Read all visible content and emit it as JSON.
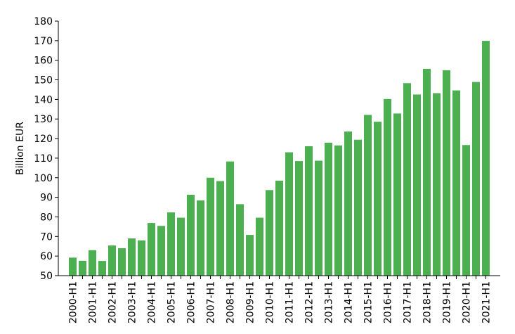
{
  "chart_data": {
    "type": "bar",
    "title": "",
    "xlabel": "",
    "ylabel": "Billion EUR",
    "ylim": [
      50,
      180
    ],
    "yticks": [
      50,
      60,
      70,
      80,
      90,
      100,
      110,
      120,
      130,
      140,
      150,
      160,
      170,
      180
    ],
    "grid": false,
    "legend": "none",
    "bar_color": "#4caf50",
    "categories": [
      "2000-H1",
      "2000-H2",
      "2001-H1",
      "2001-H2",
      "2002-H1",
      "2002-H2",
      "2003-H1",
      "2003-H2",
      "2004-H1",
      "2004-H2",
      "2005-H1",
      "2005-H2",
      "2006-H1",
      "2006-H2",
      "2007-H1",
      "2007-H2",
      "2008-H1",
      "2008-H2",
      "2009-H1",
      "2009-H2",
      "2010-H1",
      "2010-H2",
      "2011-H1",
      "2011-H2",
      "2012-H1",
      "2012-H2",
      "2013-H1",
      "2013-H2",
      "2014-H1",
      "2014-H2",
      "2015-H1",
      "2015-H2",
      "2016-H1",
      "2016-H2",
      "2017-H1",
      "2017-H2",
      "2018-H1",
      "2018-H2",
      "2019-H1",
      "2019-H2",
      "2020-H1",
      "2020-H2",
      "2021-H1"
    ],
    "tick_labels": [
      "2000-H1",
      "",
      "2001-H1",
      "",
      "2002-H1",
      "",
      "2003-H1",
      "",
      "2004-H1",
      "",
      "2005-H1",
      "",
      "2006-H1",
      "",
      "2007-H1",
      "",
      "2008-H1",
      "",
      "2009-H1",
      "",
      "2010-H1",
      "",
      "2011-H1",
      "",
      "2012-H1",
      "",
      "2013-H1",
      "",
      "2014-H1",
      "",
      "2015-H1",
      "",
      "2016-H1",
      "",
      "2017-H1",
      "",
      "2018-H1",
      "",
      "2019-H1",
      "",
      "2020-H1",
      "",
      "2021-H1"
    ],
    "values": [
      59.2,
      57.6,
      63.0,
      57.5,
      65.4,
      64.0,
      69.0,
      68.0,
      76.9,
      75.4,
      82.3,
      79.6,
      91.3,
      88.4,
      100.0,
      98.3,
      108.3,
      86.5,
      70.8,
      79.6,
      93.7,
      98.5,
      113.0,
      108.5,
      116.1,
      108.7,
      117.9,
      116.5,
      123.6,
      119.4,
      132.1,
      128.6,
      140.2,
      132.8,
      148.3,
      142.5,
      155.6,
      143.2,
      154.9,
      144.6,
      116.7,
      148.9,
      169.9
    ]
  }
}
